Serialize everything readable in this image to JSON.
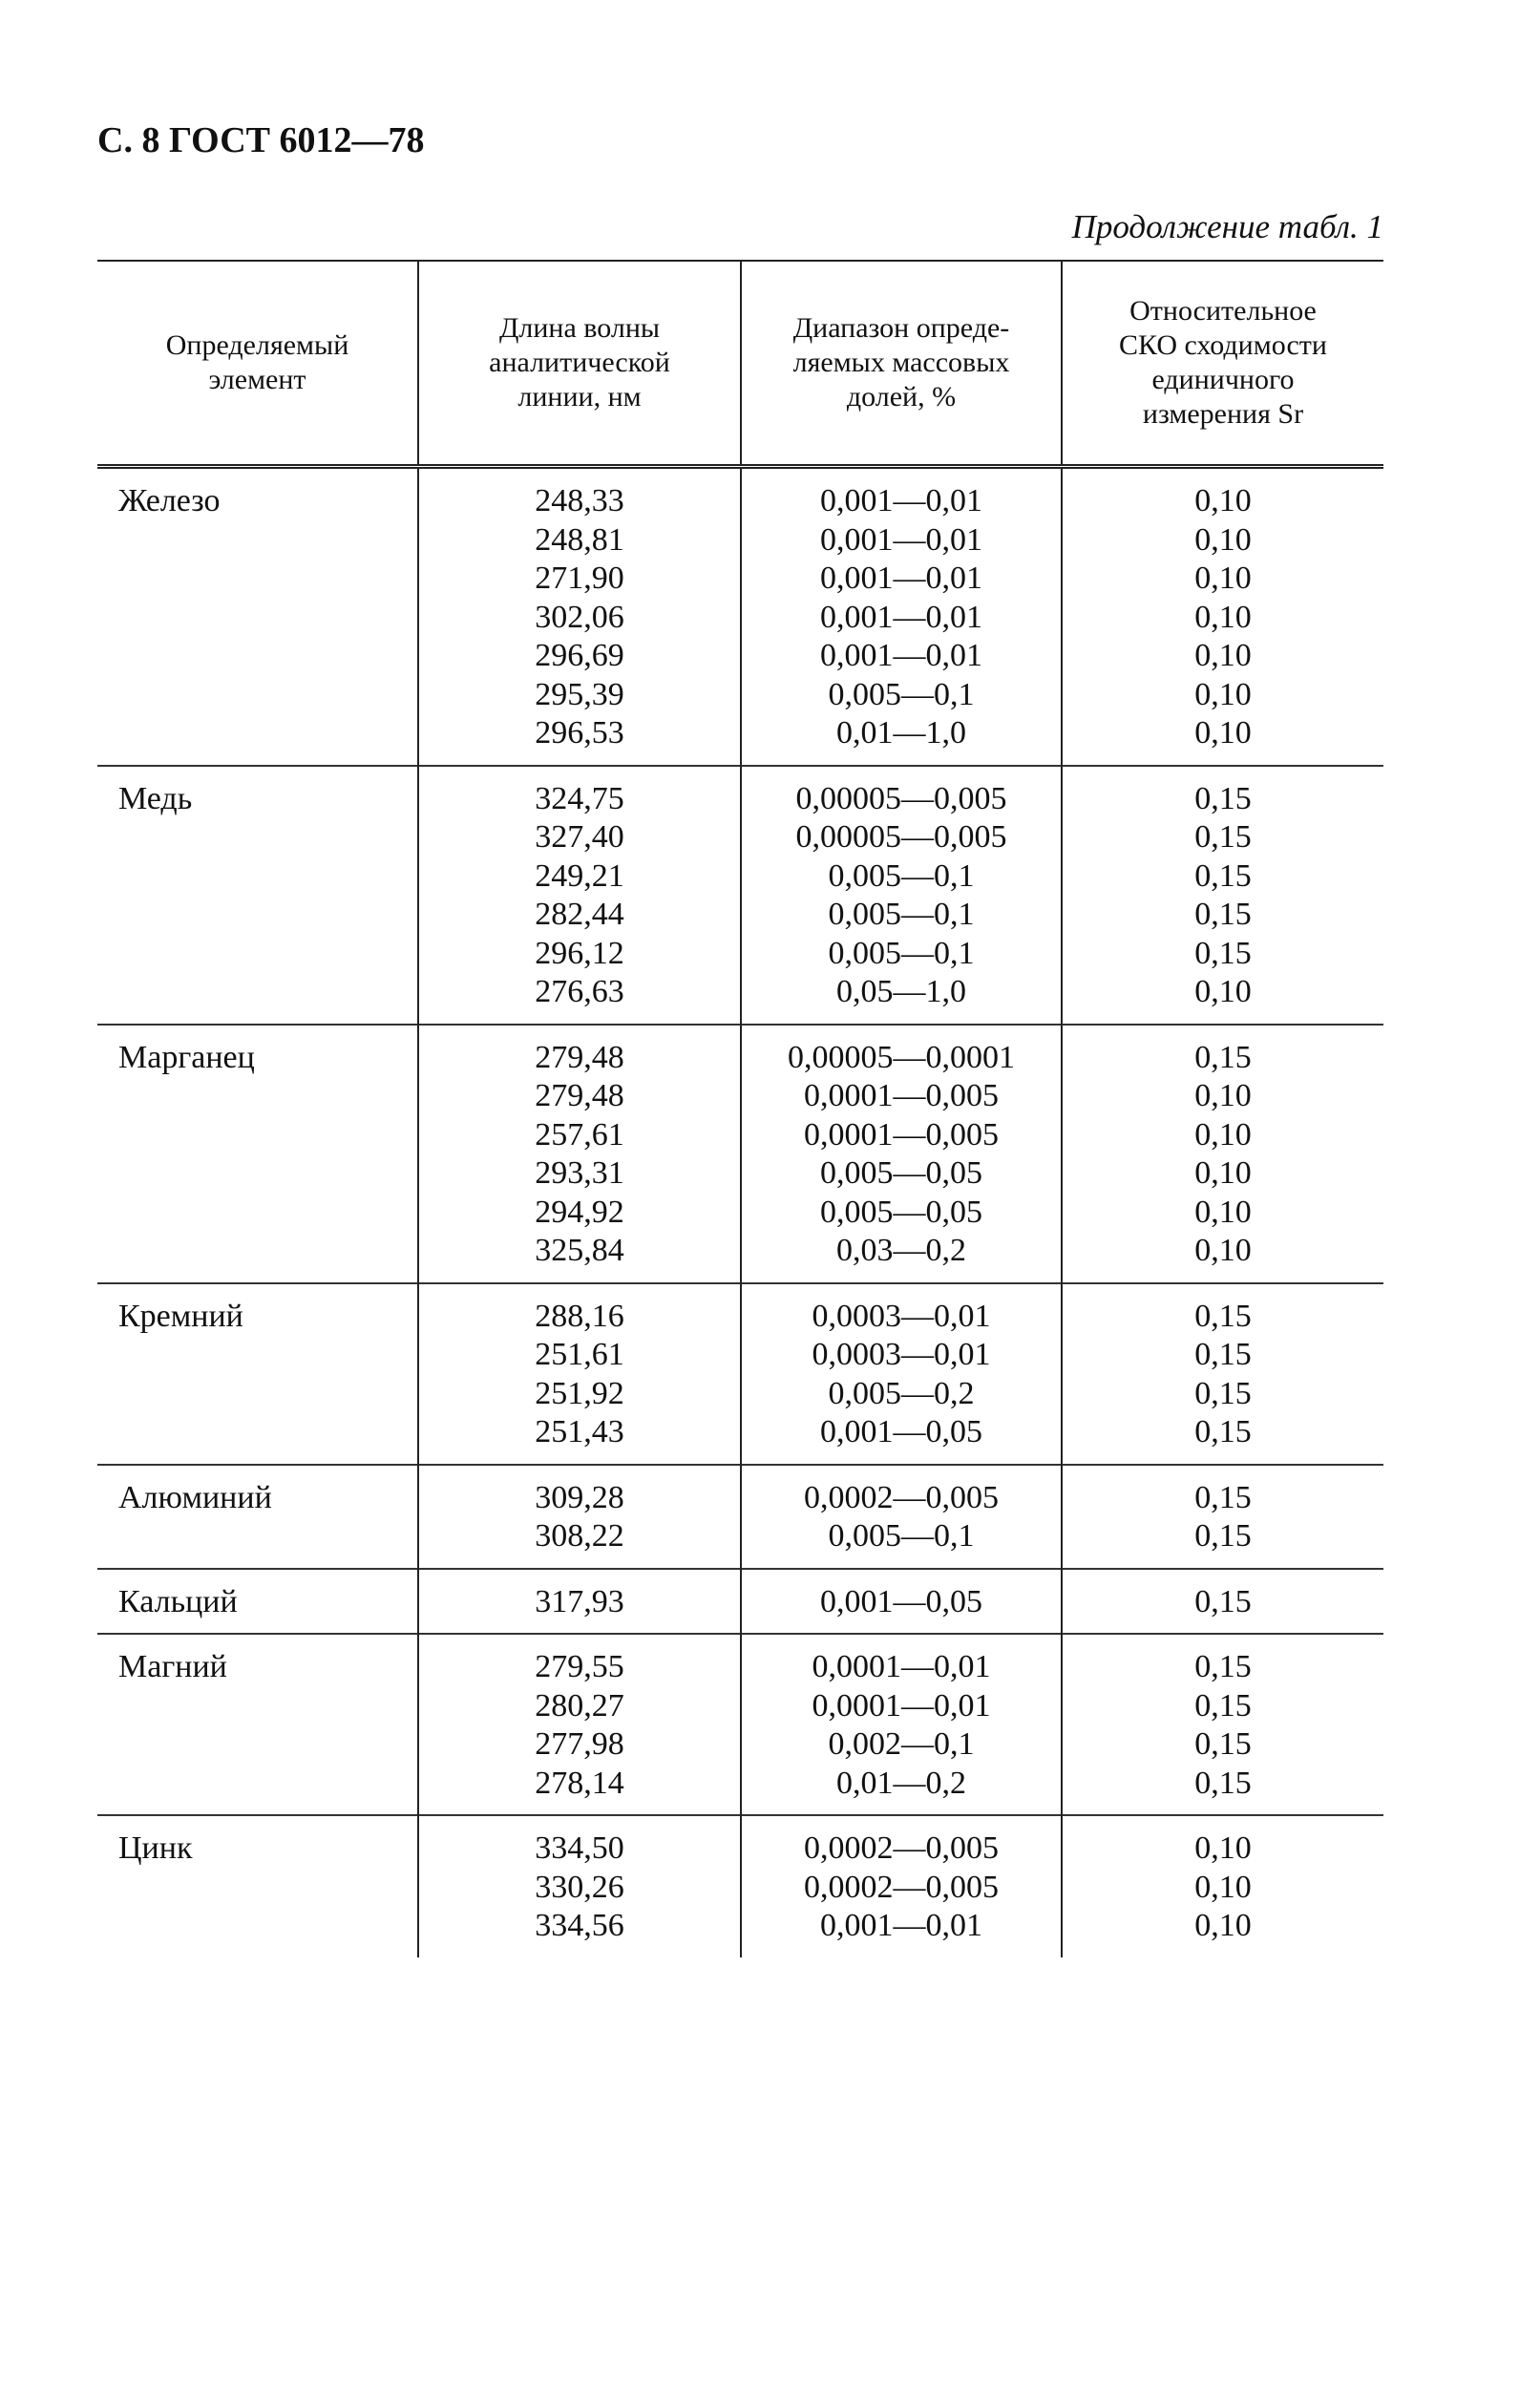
{
  "header": {
    "page_label": "С. 8 ГОСТ 6012—78",
    "caption": "Продолжение табл. 1"
  },
  "table": {
    "columns": [
      [
        "Определяемый",
        "элемент"
      ],
      [
        "Длина волны",
        "аналитической",
        "линии, нм"
      ],
      [
        "Диапазон опреде-",
        "ляемых массовых",
        "долей, %"
      ],
      [
        "Относительное",
        "СКО сходимости",
        "единичного",
        "измерения Sr"
      ]
    ],
    "groups": [
      {
        "element": "Железо",
        "rows": [
          [
            "248,33",
            "0,001—0,01",
            "0,10"
          ],
          [
            "248,81",
            "0,001—0,01",
            "0,10"
          ],
          [
            "271,90",
            "0,001—0,01",
            "0,10"
          ],
          [
            "302,06",
            "0,001—0,01",
            "0,10"
          ],
          [
            "296,69",
            "0,001—0,01",
            "0,10"
          ],
          [
            "295,39",
            "0,005—0,1",
            "0,10"
          ],
          [
            "296,53",
            "0,01—1,0",
            "0,10"
          ]
        ]
      },
      {
        "element": "Медь",
        "rows": [
          [
            "324,75",
            "0,00005—0,005",
            "0,15"
          ],
          [
            "327,40",
            "0,00005—0,005",
            "0,15"
          ],
          [
            "249,21",
            "0,005—0,1",
            "0,15"
          ],
          [
            "282,44",
            "0,005—0,1",
            "0,15"
          ],
          [
            "296,12",
            "0,005—0,1",
            "0,15"
          ],
          [
            "276,63",
            "0,05—1,0",
            "0,10"
          ]
        ]
      },
      {
        "element": "Марганец",
        "rows": [
          [
            "279,48",
            "0,00005—0,0001",
            "0,15"
          ],
          [
            "279,48",
            "0,0001—0,005",
            "0,10"
          ],
          [
            "257,61",
            "0,0001—0,005",
            "0,10"
          ],
          [
            "293,31",
            "0,005—0,05",
            "0,10"
          ],
          [
            "294,92",
            "0,005—0,05",
            "0,10"
          ],
          [
            "325,84",
            "0,03—0,2",
            "0,10"
          ]
        ]
      },
      {
        "element": "Кремний",
        "rows": [
          [
            "288,16",
            "0,0003—0,01",
            "0,15"
          ],
          [
            "251,61",
            "0,0003—0,01",
            "0,15"
          ],
          [
            "251,92",
            "0,005—0,2",
            "0,15"
          ],
          [
            "251,43",
            "0,001—0,05",
            "0,15"
          ]
        ]
      },
      {
        "element": "Алюминий",
        "rows": [
          [
            "309,28",
            "0,0002—0,005",
            "0,15"
          ],
          [
            "308,22",
            "0,005—0,1",
            "0,15"
          ]
        ]
      },
      {
        "element": "Кальций",
        "rows": [
          [
            "317,93",
            "0,001—0,05",
            "0,15"
          ]
        ]
      },
      {
        "element": "Магний",
        "rows": [
          [
            "279,55",
            "0,0001—0,01",
            "0,15"
          ],
          [
            "280,27",
            "0,0001—0,01",
            "0,15"
          ],
          [
            "277,98",
            "0,002—0,1",
            "0,15"
          ],
          [
            "278,14",
            "0,01—0,2",
            "0,15"
          ]
        ]
      },
      {
        "element": "Цинк",
        "rows": [
          [
            "334,50",
            "0,0002—0,005",
            "0,10"
          ],
          [
            "330,26",
            "0,0002—0,005",
            "0,10"
          ],
          [
            "334,56",
            "0,001—0,01",
            "0,10"
          ]
        ]
      }
    ]
  }
}
